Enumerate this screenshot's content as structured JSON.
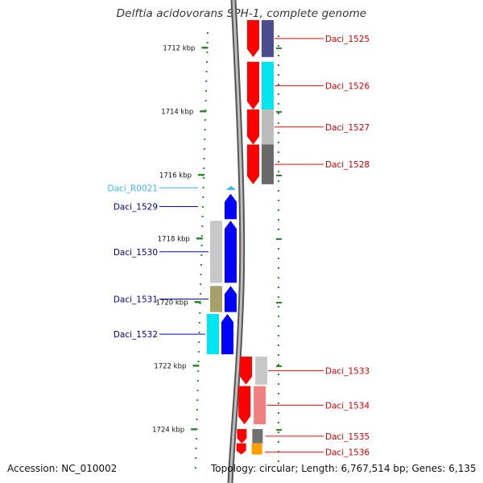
{
  "title": "Delftia acidovorans SPH-1, complete genome",
  "accession": "Accession: NC_010002",
  "summary": "Topology: circular; Length: 6,767,514 bp; Genes: 6,135",
  "scale_labels": [
    "1712 kbp",
    "1714 kbp",
    "1716 kbp",
    "1718 kbp",
    "1720 kbp",
    "1722 kbp",
    "1724 kbp"
  ],
  "scale_kbp": [
    1712,
    1714,
    1716,
    1718,
    1720,
    1722,
    1724
  ],
  "colors": {
    "forward": "#ff0000",
    "reverse": "#0000ff",
    "rna": "#3ab8e8",
    "forward_label": "#cc0000",
    "reverse_label": "#00008b",
    "rna_label": "#3ab8e8",
    "scale_tick": "#2a8a2a",
    "backbone": "#7f7f7f"
  },
  "forward_genes": [
    {
      "name": "Daci_1525",
      "start_kbp": 1711.13,
      "end_kbp": 1712.3,
      "cog_color": "#4b4b8f"
    },
    {
      "name": "Daci_1526",
      "start_kbp": 1712.45,
      "end_kbp": 1713.95,
      "cog_color": "#00e5ee"
    },
    {
      "name": "Daci_1527",
      "start_kbp": 1713.95,
      "end_kbp": 1715.05,
      "cog_color": "#bcbcbc"
    },
    {
      "name": "Daci_1528",
      "start_kbp": 1715.05,
      "end_kbp": 1716.3,
      "cog_color": "#6a6a6a"
    },
    {
      "name": "Daci_1533",
      "start_kbp": 1721.72,
      "end_kbp": 1722.6,
      "cog_color": "#c8c8c8"
    },
    {
      "name": "Daci_1534",
      "start_kbp": 1722.65,
      "end_kbp": 1723.85,
      "cog_color": "#f08080"
    },
    {
      "name": "Daci_1535",
      "start_kbp": 1724.0,
      "end_kbp": 1724.45,
      "cog_color": "#707070"
    },
    {
      "name": "Daci_1536",
      "start_kbp": 1724.45,
      "end_kbp": 1724.8,
      "cog_color": "#ff9e00"
    }
  ],
  "reverse_genes": [
    {
      "name": "Daci_R0021",
      "start_kbp": 1716.35,
      "end_kbp": 1716.48,
      "type": "rna"
    },
    {
      "name": "Daci_1529",
      "start_kbp": 1716.6,
      "end_kbp": 1717.4,
      "cog_color": null
    },
    {
      "name": "Daci_1530",
      "start_kbp": 1717.45,
      "end_kbp": 1719.4,
      "cog_color": "#c8c8c8"
    },
    {
      "name": "Daci_1531",
      "start_kbp": 1719.5,
      "end_kbp": 1720.32,
      "cog_color": "#a8a06a"
    },
    {
      "name": "Daci_1532",
      "start_kbp": 1720.38,
      "end_kbp": 1721.65,
      "cog_color": "#00e5ee"
    }
  ]
}
